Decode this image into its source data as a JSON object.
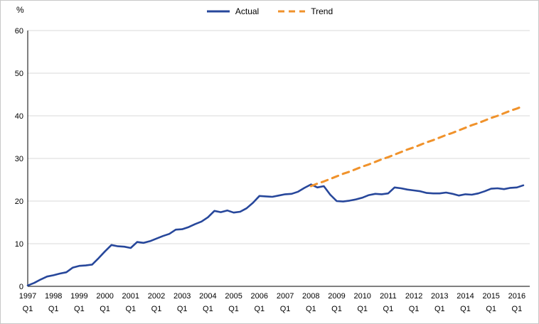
{
  "chart_data": {
    "type": "line",
    "title": "",
    "ylabel": "%",
    "ylim": [
      0,
      60
    ],
    "yticks": [
      0,
      10,
      20,
      30,
      40,
      50,
      60
    ],
    "grid": "horizontal",
    "legend_position": "top-center",
    "x_unit": "quarter",
    "x_count": 78,
    "x_ticks": [
      {
        "line1": "1997",
        "line2": "Q1"
      },
      {
        "line1": "1998",
        "line2": "Q1"
      },
      {
        "line1": "1999",
        "line2": "Q1"
      },
      {
        "line1": "2000",
        "line2": "Q1"
      },
      {
        "line1": "2001",
        "line2": "Q1"
      },
      {
        "line1": "2002",
        "line2": "Q1"
      },
      {
        "line1": "2003",
        "line2": "Q1"
      },
      {
        "line1": "2004",
        "line2": "Q1"
      },
      {
        "line1": "2005",
        "line2": "Q1"
      },
      {
        "line1": "2006",
        "line2": "Q1"
      },
      {
        "line1": "2007",
        "line2": "Q1"
      },
      {
        "line1": "2008",
        "line2": "Q1"
      },
      {
        "line1": "2009",
        "line2": "Q1"
      },
      {
        "line1": "2010",
        "line2": "Q1"
      },
      {
        "line1": "2011",
        "line2": "Q1"
      },
      {
        "line1": "2012",
        "line2": "Q1"
      },
      {
        "line1": "2013",
        "line2": "Q1"
      },
      {
        "line1": "2014",
        "line2": "Q1"
      },
      {
        "line1": "2015",
        "line2": "Q1"
      },
      {
        "line1": "2016",
        "line2": "Q1"
      }
    ],
    "series": [
      {
        "name": "Actual",
        "color": "#27479b",
        "style": "solid",
        "width": 2.6,
        "start_index": 0,
        "values": [
          0.2,
          0.8,
          1.6,
          2.3,
          2.6,
          3.0,
          3.3,
          4.4,
          4.8,
          4.9,
          5.1,
          6.6,
          8.2,
          9.7,
          9.4,
          9.3,
          9.0,
          10.4,
          10.2,
          10.6,
          11.2,
          11.8,
          12.3,
          13.3,
          13.4,
          13.9,
          14.6,
          15.2,
          16.2,
          17.7,
          17.4,
          17.8,
          17.3,
          17.5,
          18.3,
          19.6,
          21.2,
          21.1,
          21.0,
          21.3,
          21.6,
          21.7,
          22.2,
          23.1,
          23.9,
          23.2,
          23.5,
          21.5,
          20.0,
          19.9,
          20.1,
          20.4,
          20.8,
          21.4,
          21.7,
          21.6,
          21.8,
          23.2,
          23.0,
          22.7,
          22.5,
          22.3,
          21.9,
          21.8,
          21.8,
          22.0,
          21.7,
          21.3,
          21.6,
          21.5,
          21.8,
          22.3,
          22.9,
          23.0,
          22.8,
          23.1,
          23.2,
          23.7
        ]
      },
      {
        "name": "Trend",
        "color": "#f0922b",
        "style": "dashed",
        "width": 3,
        "start_index": 44,
        "values": [
          23.5,
          24.1,
          24.6,
          25.2,
          25.8,
          26.4,
          26.9,
          27.5,
          28.1,
          28.6,
          29.2,
          29.8,
          30.3,
          30.9,
          31.5,
          32.1,
          32.6,
          33.2,
          33.8,
          34.3,
          34.9,
          35.5,
          36.0,
          36.6,
          37.2,
          37.8,
          38.3,
          38.9,
          39.5,
          40.0,
          40.6,
          41.2,
          41.7,
          42.3
        ]
      }
    ],
    "colors": {
      "gridline": "#d9d9d9",
      "axis": "#000000"
    }
  }
}
